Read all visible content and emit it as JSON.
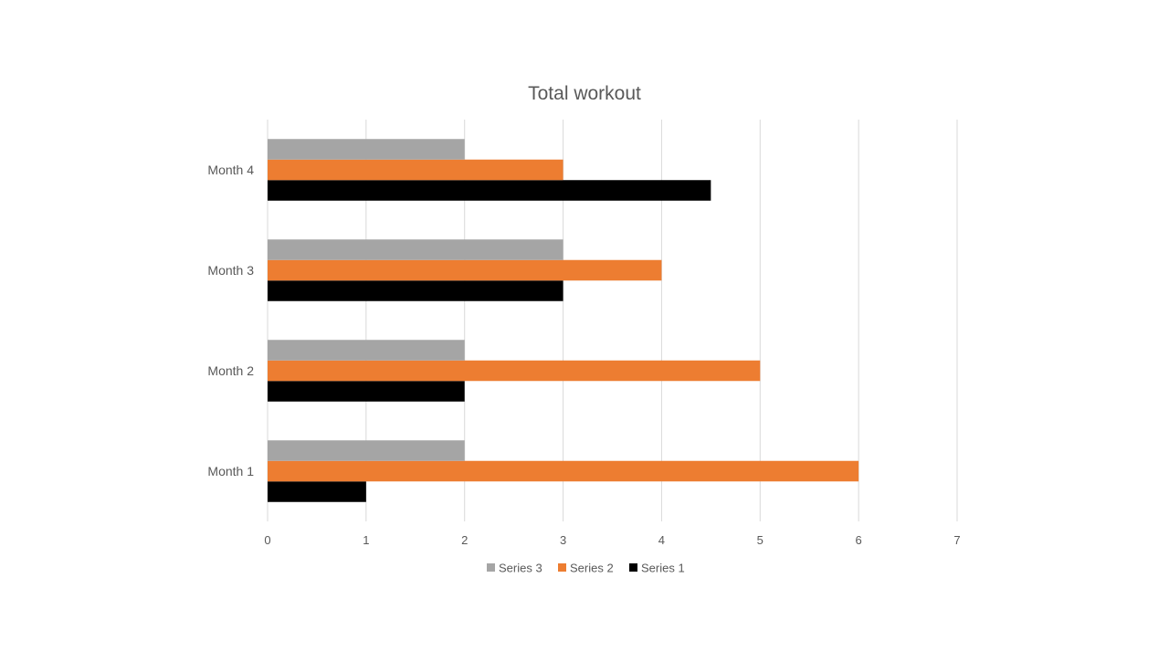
{
  "chart_data": {
    "type": "bar",
    "orientation": "horizontal",
    "title": "Total workout",
    "xlabel": "",
    "ylabel": "",
    "categories": [
      "Month 1",
      "Month 2",
      "Month 3",
      "Month 4"
    ],
    "series": [
      {
        "name": "Series 1",
        "values": [
          1,
          2,
          3,
          4.5
        ],
        "color": "#000000"
      },
      {
        "name": "Series 2",
        "values": [
          6,
          5,
          4,
          3
        ],
        "color": "#ED7D31"
      },
      {
        "name": "Series 3",
        "values": [
          2,
          2,
          3,
          2
        ],
        "color": "#A5A5A5"
      }
    ],
    "xlim": [
      0,
      7
    ],
    "x_ticks": [
      "0",
      "1",
      "2",
      "3",
      "4",
      "5",
      "6",
      "7"
    ],
    "grid": true,
    "legend": {
      "position": "bottom",
      "entries": [
        {
          "name": "Series 3",
          "color": "#A5A5A5"
        },
        {
          "name": "Series 2",
          "color": "#ED7D31"
        },
        {
          "name": "Series 1",
          "color": "#000000"
        }
      ]
    }
  }
}
